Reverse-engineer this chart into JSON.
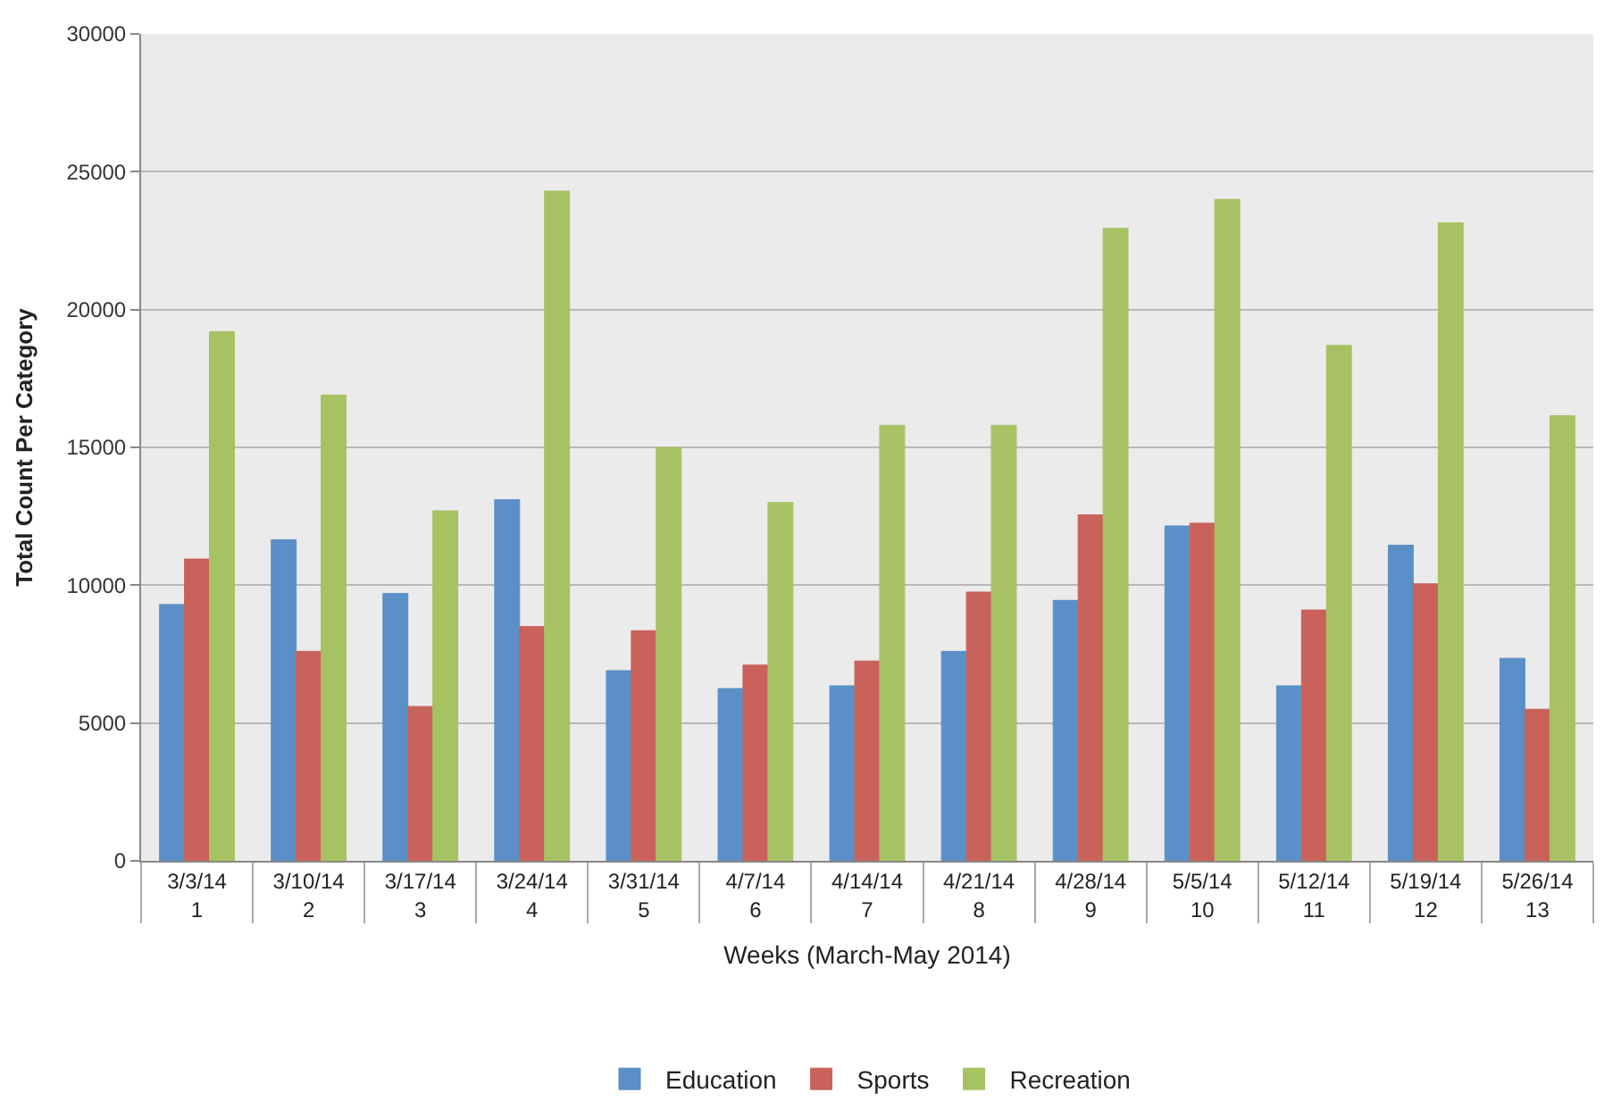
{
  "chart_data": {
    "type": "bar",
    "xlabel": "Weeks (March-May 2014)",
    "ylabel": "Total Count Per Category",
    "categories": [
      "3/3/14\n1",
      "3/10/14\n2",
      "3/17/14\n3",
      "3/24/14\n4",
      "3/31/14\n5",
      "4/7/14\n6",
      "4/14/14\n7",
      "4/21/14\n8",
      "4/28/14\n9",
      "5/5/14\n10",
      "5/12/14\n11",
      "5/19/14\n12",
      "5/26/14\n13"
    ],
    "series": [
      {
        "name": "Education",
        "color": "#5b8fc7",
        "values": [
          9300,
          11650,
          9700,
          13100,
          6900,
          6250,
          6350,
          7600,
          9450,
          12150,
          6350,
          11450,
          7350
        ]
      },
      {
        "name": "Sports",
        "color": "#c9625a",
        "values": [
          10950,
          7600,
          5600,
          8500,
          8350,
          7100,
          7250,
          9750,
          12550,
          12250,
          9100,
          10050,
          5500
        ]
      },
      {
        "name": "Recreation",
        "color": "#a6c263",
        "values": [
          19200,
          16900,
          12700,
          24300,
          15000,
          13000,
          15800,
          15800,
          22950,
          24000,
          18700,
          23150,
          16150
        ]
      }
    ],
    "ylim": [
      0,
      30000
    ],
    "yticks": [
      0,
      5000,
      10000,
      15000,
      20000,
      25000,
      30000
    ],
    "grid": "y",
    "legend": "bottom"
  }
}
